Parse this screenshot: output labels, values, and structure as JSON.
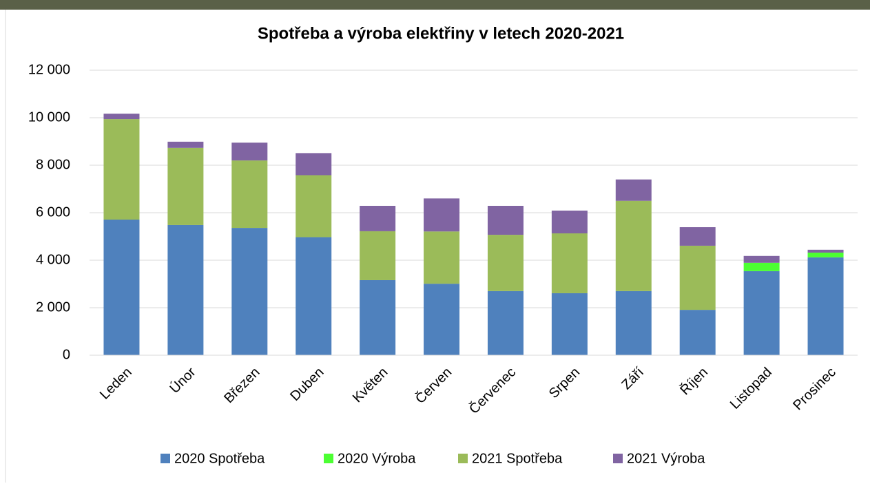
{
  "chart_data": {
    "type": "stacked_bar",
    "title": "Spotřeba a výroba elektřiny v letech 2020-2021",
    "categories": [
      "Leden",
      "Únor",
      "Březen",
      "Duben",
      "Květen",
      "Červen",
      "Červenec",
      "Srpen",
      "Září",
      "Říjen",
      "Listopad",
      "Prosinec"
    ],
    "series": [
      {
        "name": "2020 Spotřeba",
        "color": "#4f81bd",
        "values": [
          5710,
          5480,
          5360,
          4970,
          3160,
          3010,
          2700,
          2610,
          2700,
          1910,
          3540,
          4120
        ]
      },
      {
        "name": "2020 Výroba",
        "color": "#4cff33",
        "values": [
          0,
          0,
          0,
          0,
          0,
          0,
          0,
          0,
          0,
          0,
          350,
          200
        ]
      },
      {
        "name": "2021 Spotřeba",
        "color": "#9bbb59",
        "values": [
          4230,
          3250,
          2840,
          2610,
          2060,
          2200,
          2370,
          2520,
          3800,
          2700,
          0,
          0
        ]
      },
      {
        "name": "2021 Výroba",
        "color": "#8064a2",
        "values": [
          230,
          260,
          750,
          930,
          1070,
          1390,
          1220,
          960,
          900,
          780,
          290,
          120
        ]
      }
    ],
    "ylim": [
      0,
      12000
    ],
    "yticks": [
      0,
      {
        "value": 2000,
        "label": "2 000"
      },
      {
        "value": 4000,
        "label": "4 000"
      },
      {
        "value": 6000,
        "label": "6 000"
      },
      {
        "value": 8000,
        "label": "8 000"
      },
      {
        "value": 10000,
        "label": "10 000"
      },
      {
        "value": 12000,
        "label": "12 000"
      }
    ],
    "grid": true,
    "legend": "bottom"
  }
}
